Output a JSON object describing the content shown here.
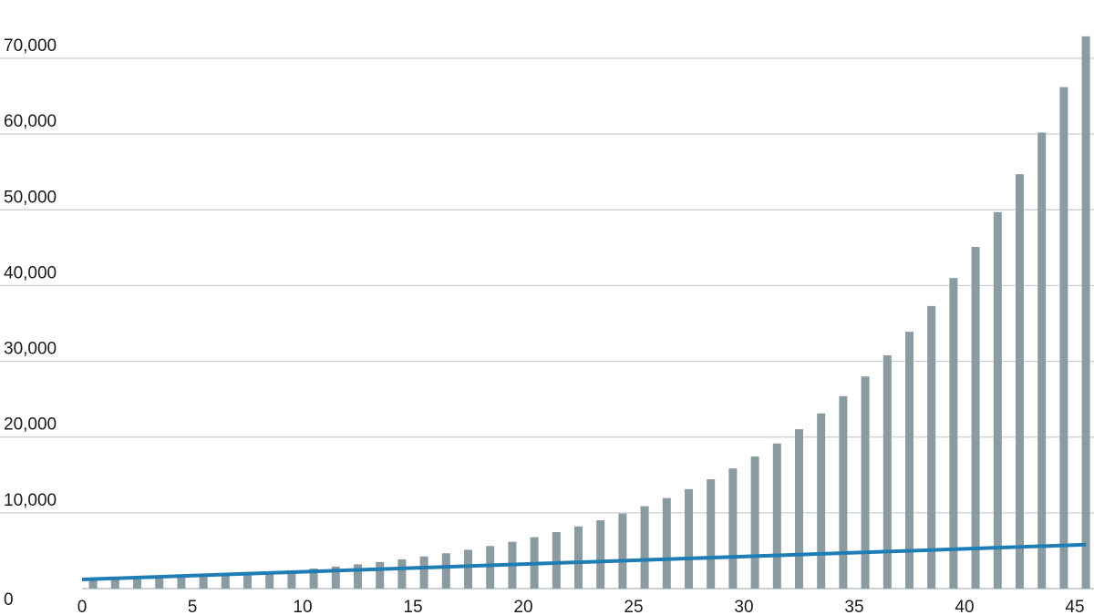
{
  "colors": {
    "bar": "#8a9ba2",
    "line": "#1f7db5",
    "grid": "#c8cdd1",
    "text": "#1a1a1a"
  },
  "chart_data": {
    "type": "bar",
    "title": "",
    "xlabel": "",
    "ylabel": "",
    "grid": true,
    "legend": "none",
    "xlim": [
      0,
      45.5
    ],
    "ylim": [
      0,
      73000
    ],
    "x_ticks": [
      0,
      5,
      10,
      15,
      20,
      25,
      30,
      35,
      40,
      45
    ],
    "x_tick_labels": [
      "0",
      "5",
      "10",
      "15",
      "20",
      "25",
      "30",
      "35",
      "40",
      "45"
    ],
    "y_ticks": [
      0,
      10000,
      20000,
      30000,
      40000,
      50000,
      60000,
      70000
    ],
    "y_tick_labels": [
      "0",
      "10,000",
      "20,000",
      "30,000",
      "40,000",
      "50,000",
      "60,000",
      "70,000"
    ],
    "series": [
      {
        "type": "bar",
        "x": [
          0.5,
          1.5,
          2.5,
          3.5,
          4.5,
          5.5,
          6.5,
          7.5,
          8.5,
          9.5,
          10.5,
          11.5,
          12.5,
          13.5,
          14.5,
          15.5,
          16.5,
          17.5,
          18.5,
          19.5,
          20.5,
          21.5,
          22.5,
          23.5,
          24.5,
          25.5,
          26.5,
          27.5,
          28.5,
          29.5,
          30.5,
          31.5,
          32.5,
          33.5,
          34.5,
          35.5,
          36.5,
          37.5,
          38.5,
          39.5,
          40.5,
          41.5,
          42.5,
          43.5,
          44.5,
          45.5
        ],
        "values": [
          1050,
          1150,
          1260,
          1380,
          1520,
          1670,
          1820,
          2000,
          2200,
          2410,
          2650,
          2910,
          3200,
          3510,
          3860,
          4240,
          4660,
          5120,
          5620,
          6180,
          6790,
          7460,
          8200,
          9010,
          9900,
          10880,
          11950,
          13130,
          14430,
          15860,
          17430,
          19150,
          21040,
          23120,
          25400,
          28000,
          30800,
          33900,
          37300,
          41000,
          45100,
          49700,
          54700,
          60200,
          66200,
          72900
        ]
      },
      {
        "type": "line",
        "x": [
          0,
          45.5
        ],
        "values": [
          1200,
          5800
        ]
      }
    ]
  }
}
